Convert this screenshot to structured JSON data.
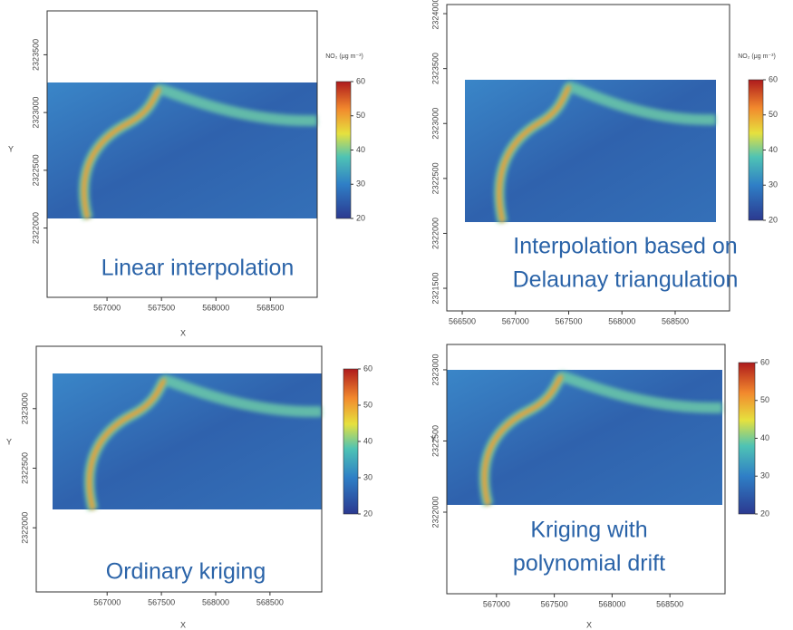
{
  "chart_data": [
    {
      "type": "raster",
      "title": [
        "Linear interpolation"
      ],
      "xlabel": "X",
      "ylabel": "Y",
      "xlim": [
        566450,
        568930
      ],
      "xticks": [
        567000,
        567500,
        568000,
        568500
      ],
      "ylim": [
        2321400,
        2323880
      ],
      "yticks": [
        2322000,
        2322500,
        2323000,
        2323500
      ],
      "colorbar": {
        "label": "NO₂ (μg m⁻³)",
        "lim": [
          20,
          60
        ],
        "ticks": [
          20,
          30,
          40,
          50,
          60
        ]
      }
    },
    {
      "type": "raster",
      "title": [
        "Interpolation based on",
        "Delaunay triangulation"
      ],
      "xlim": [
        566355,
        569011
      ],
      "xticks": [
        566500,
        567000,
        567500,
        568000,
        568500
      ],
      "ylim": [
        2321294,
        2324083
      ],
      "yticks": [
        2321500,
        2322000,
        2322500,
        2323000,
        2323500,
        2324000
      ],
      "colorbar": {
        "label": "NO₂ (μg m⁻³)",
        "lim": [
          20,
          60
        ],
        "ticks": [
          20,
          30,
          40,
          50,
          60
        ]
      }
    },
    {
      "type": "raster",
      "title": [
        "Ordinary kriging"
      ],
      "xlabel": "X",
      "ylabel": "Y",
      "xlim": [
        566347,
        568977
      ],
      "xticks": [
        567000,
        567500,
        568000,
        568500
      ],
      "ylim": [
        2321462,
        2323523
      ],
      "yticks": [
        2322000,
        2322500,
        2323000
      ],
      "colorbar": {
        "lim": [
          20,
          60
        ],
        "ticks": [
          20,
          30,
          40,
          50,
          60
        ]
      }
    },
    {
      "type": "raster",
      "title": [
        "Kriging with",
        "polynomial drift"
      ],
      "xlabel": "X",
      "ylabel": "Y",
      "xlim": [
        566570,
        568977
      ],
      "xticks": [
        567000,
        567500,
        568000,
        568500
      ],
      "ylim": [
        2321427,
        2323178
      ],
      "yticks": [
        2322000,
        2322500,
        2323000
      ],
      "colorbar": {
        "lim": [
          20,
          60
        ],
        "ticks": [
          20,
          30,
          40,
          50,
          60
        ]
      }
    }
  ]
}
